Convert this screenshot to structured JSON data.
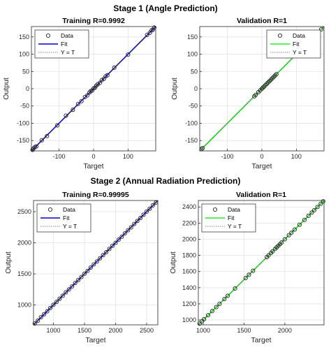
{
  "figure": {
    "stage1_title": "Stage 1 (Angle Prediction)",
    "stage2_title": "Stage 2 (Annual Radiation Prediction)"
  },
  "chart_data": [
    {
      "type": "scatter",
      "title": "Training R=0.9992",
      "xlabel": "Target",
      "ylabel": "Output",
      "xlim": [
        -180,
        180
      ],
      "ylim": [
        -180,
        180
      ],
      "xticks": [
        -100,
        0,
        100
      ],
      "yticks": [
        -150,
        -100,
        -50,
        0,
        50,
        100,
        150
      ],
      "grid": true,
      "fit_color": "#0000cc",
      "legend": [
        "Data",
        "Fit",
        "Y = T"
      ],
      "legend_position": "top-left",
      "series": [
        {
          "name": "Data",
          "x": [
            -177,
            -174,
            -170,
            -166,
            -150,
            -135,
            -105,
            -80,
            -60,
            -45,
            -35,
            -25,
            -18,
            -12,
            -8,
            -4,
            0,
            4,
            8,
            12,
            18,
            24,
            30,
            35,
            40,
            60,
            100,
            155,
            163,
            168,
            172,
            176
          ],
          "y": [
            -177,
            -173,
            -169,
            -167,
            -149,
            -137,
            -106,
            -78,
            -61,
            -44,
            -36,
            -24,
            -19,
            -11,
            -7,
            -5,
            1,
            3,
            9,
            13,
            17,
            25,
            29,
            36,
            39,
            61,
            99,
            156,
            162,
            169,
            171,
            177
          ]
        },
        {
          "name": "Fit",
          "x": [
            -180,
            180
          ],
          "y": [
            -180,
            180
          ]
        },
        {
          "name": "Y = T",
          "x": [
            -180,
            180
          ],
          "y": [
            -180,
            180
          ]
        }
      ]
    },
    {
      "type": "scatter",
      "title": "Validation R=1",
      "xlabel": "Target",
      "ylabel": "Output",
      "xlim": [
        -180,
        180
      ],
      "ylim": [
        -180,
        180
      ],
      "xticks": [
        -100,
        0,
        100
      ],
      "yticks": [
        -150,
        -100,
        -50,
        0,
        50,
        100,
        150
      ],
      "grid": true,
      "fit_color": "#22ee22",
      "legend": [
        "Data",
        "Fit",
        "Y = T"
      ],
      "legend_position": "top-right",
      "series": [
        {
          "name": "Data",
          "x": [
            -175,
            -172,
            -22,
            -18,
            -10,
            -5,
            0,
            3,
            6,
            10,
            14,
            18,
            22,
            26,
            30,
            34,
            38,
            42,
            172
          ],
          "y": [
            -175,
            -172,
            -22,
            -18,
            -10,
            -5,
            0,
            3,
            6,
            10,
            14,
            18,
            22,
            26,
            30,
            34,
            38,
            42,
            172
          ]
        },
        {
          "name": "Fit",
          "x": [
            -180,
            180
          ],
          "y": [
            -180,
            180
          ]
        },
        {
          "name": "Y = T",
          "x": [
            -180,
            180
          ],
          "y": [
            -180,
            180
          ]
        }
      ]
    },
    {
      "type": "scatter",
      "title": "Training R=0.99995",
      "xlabel": "Target",
      "ylabel": "Output",
      "xlim": [
        680,
        2680
      ],
      "ylim": [
        680,
        2680
      ],
      "xticks": [
        1000,
        1500,
        2000,
        2500
      ],
      "yticks": [
        1000,
        1500,
        2000,
        2500
      ],
      "grid": true,
      "fit_color": "#0000cc",
      "legend": [
        "Data",
        "Fit",
        "Y = T"
      ],
      "legend_position": "top-left",
      "series": [
        {
          "name": "Data",
          "x": [
            700,
            750,
            800,
            850,
            900,
            950,
            1000,
            1050,
            1100,
            1150,
            1200,
            1250,
            1300,
            1350,
            1400,
            1450,
            1500,
            1550,
            1600,
            1650,
            1700,
            1750,
            1800,
            1850,
            1900,
            1950,
            2000,
            2050,
            2100,
            2150,
            2200,
            2250,
            2300,
            2350,
            2400,
            2450,
            2500,
            2550,
            2600,
            2650
          ],
          "y": [
            702,
            748,
            803,
            851,
            898,
            951,
            1002,
            1049,
            1101,
            1148,
            1203,
            1249,
            1298,
            1352,
            1401,
            1449,
            1502,
            1548,
            1601,
            1652,
            1699,
            1751,
            1802,
            1848,
            1901,
            1952,
            1999,
            2051,
            2098,
            2152,
            2201,
            2248,
            2302,
            2351,
            2398,
            2452,
            2501,
            2549,
            2602,
            2648
          ]
        },
        {
          "name": "Fit",
          "x": [
            680,
            2680
          ],
          "y": [
            680,
            2680
          ]
        },
        {
          "name": "Y = T",
          "x": [
            680,
            2680
          ],
          "y": [
            680,
            2680
          ]
        }
      ]
    },
    {
      "type": "scatter",
      "title": "Validation R=1",
      "xlabel": "Target",
      "ylabel": "Output",
      "xlim": [
        940,
        2480
      ],
      "ylim": [
        940,
        2480
      ],
      "xticks": [
        1000,
        1500,
        2000
      ],
      "yticks": [
        1000,
        1200,
        1400,
        1600,
        1800,
        2000,
        2200,
        2400
      ],
      "grid": true,
      "fit_color": "#22ee22",
      "legend": [
        "Data",
        "Fit",
        "Y = T"
      ],
      "legend_position": "top-left",
      "series": [
        {
          "name": "Data",
          "x": [
            955,
            985,
            1010,
            1060,
            1110,
            1160,
            1200,
            1260,
            1300,
            1390,
            1520,
            1560,
            1610,
            1780,
            1800,
            1830,
            1850,
            1880,
            1900,
            1920,
            1940,
            1960,
            2000,
            2050,
            2080,
            2120,
            2180,
            2240,
            2290,
            2330,
            2360,
            2400,
            2440,
            2470
          ],
          "y": [
            955,
            985,
            1010,
            1060,
            1110,
            1160,
            1200,
            1260,
            1300,
            1390,
            1520,
            1560,
            1610,
            1780,
            1800,
            1830,
            1850,
            1880,
            1900,
            1920,
            1940,
            1960,
            2000,
            2050,
            2080,
            2120,
            2180,
            2240,
            2290,
            2330,
            2360,
            2400,
            2440,
            2470
          ]
        },
        {
          "name": "Fit",
          "x": [
            940,
            2480
          ],
          "y": [
            940,
            2480
          ]
        },
        {
          "name": "Y = T",
          "x": [
            940,
            2480
          ],
          "y": [
            940,
            2480
          ]
        }
      ]
    }
  ]
}
